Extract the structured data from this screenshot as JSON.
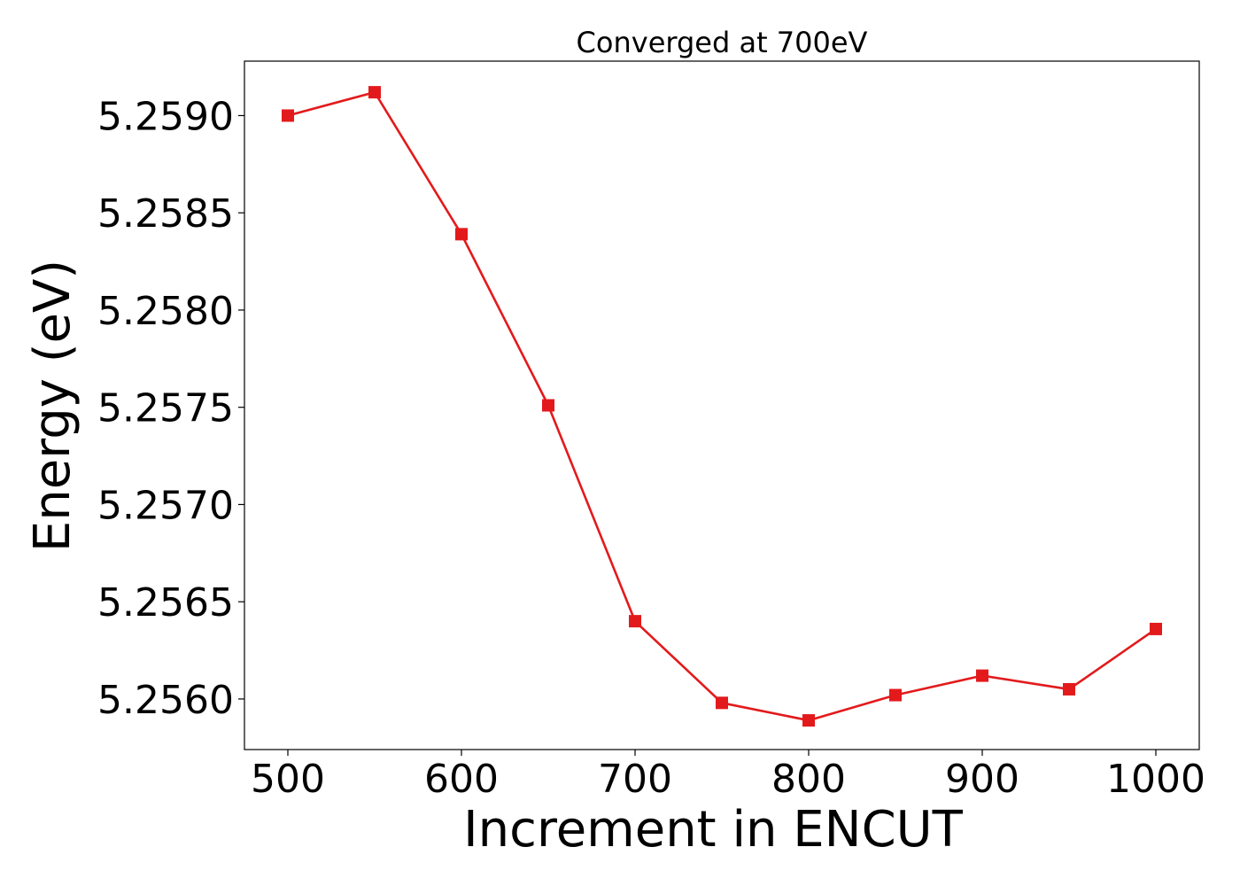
{
  "chart_data": {
    "type": "line",
    "title": "Converged at 700eV",
    "xlabel": "Increment in ENCUT",
    "ylabel": "Energy (eV)",
    "x": [
      500,
      550,
      600,
      650,
      700,
      750,
      800,
      850,
      900,
      950,
      1000
    ],
    "series": [
      {
        "values": [
          5.259,
          5.25912,
          5.25839,
          5.25751,
          5.2564,
          5.25598,
          5.25589,
          5.25602,
          5.25612,
          5.25605,
          5.25636
        ],
        "color": "#e31a1c",
        "marker": "square"
      }
    ],
    "xticks": [
      500,
      600,
      700,
      800,
      900,
      1000
    ],
    "xtick_labels": [
      "500",
      "600",
      "700",
      "800",
      "900",
      "1000"
    ],
    "yticks": [
      5.256,
      5.2565,
      5.257,
      5.2575,
      5.258,
      5.2585,
      5.259
    ],
    "ytick_labels": [
      "5.2560",
      "5.2565",
      "5.2570",
      "5.2575",
      "5.2580",
      "5.2585",
      "5.2590"
    ],
    "xlim": [
      475,
      1025
    ],
    "ylim": [
      5.25574,
      5.25928
    ],
    "grid": false,
    "legend": false
  }
}
